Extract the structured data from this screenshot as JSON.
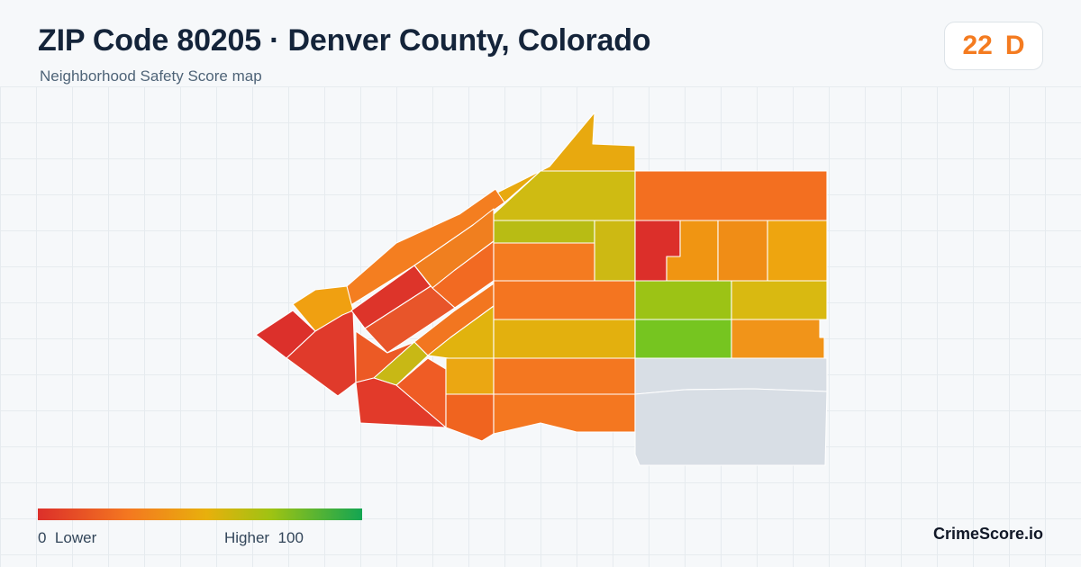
{
  "header": {
    "title": "ZIP Code 80205 · Denver County, Colorado",
    "subtitle": "Neighborhood Safety Score map"
  },
  "score_badge": {
    "score": "22",
    "grade": "D",
    "color": "#f47b20"
  },
  "legend": {
    "low_value": "0",
    "low_label": "Lower",
    "high_label": "Higher",
    "high_value": "100",
    "colors": [
      "#dc2f2a",
      "#f47820",
      "#e8b00c",
      "#9ec313",
      "#13a552"
    ]
  },
  "brand": "CrimeScore.io",
  "map": {
    "no_data_color": "#d8dee5",
    "boundary_color": "#ffffff"
  }
}
